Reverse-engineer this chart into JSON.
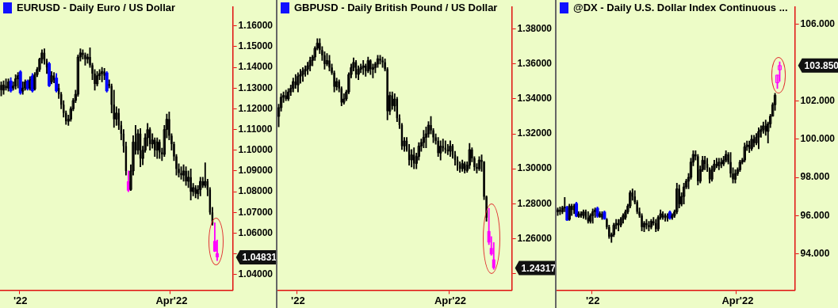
{
  "chart_data": [
    {
      "type": "candlestick",
      "title": "EURUSD - Daily  Euro / US Dollar",
      "categories": [
        null,
        null,
        null,
        null,
        null,
        null,
        null,
        null,
        "'22",
        null,
        null,
        null,
        null,
        null,
        null,
        null,
        null,
        null,
        null,
        null,
        null,
        null,
        null,
        null,
        null,
        null,
        null,
        null,
        null,
        null,
        null,
        null,
        null,
        null,
        null,
        null,
        null,
        null,
        null,
        null,
        null,
        null,
        null,
        null,
        null,
        null,
        null,
        null,
        null,
        null,
        null,
        null,
        null,
        null,
        null,
        null,
        null,
        null,
        null,
        null,
        null,
        null,
        null,
        null,
        null,
        null,
        null,
        null,
        null,
        null,
        null,
        "Apr'22",
        null,
        null,
        null,
        null,
        null,
        null,
        null,
        null,
        null,
        null,
        null,
        null,
        null,
        null,
        null,
        null,
        null,
        null,
        null,
        null,
        null,
        null,
        null,
        null,
        null
      ],
      "ohlc": [
        [
          1.1315,
          1.133,
          1.1262,
          1.129
        ],
        [
          1.129,
          1.1335,
          1.127,
          1.1315
        ],
        [
          1.131,
          1.1345,
          1.129,
          1.13
        ],
        [
          1.13,
          1.1345,
          1.1285,
          1.133
        ],
        [
          1.1336,
          1.135,
          1.128,
          1.1285
        ],
        [
          1.13,
          1.133,
          1.129,
          1.131
        ],
        [
          1.131,
          1.1365,
          1.1295,
          1.1345
        ],
        [
          1.1345,
          1.1375,
          1.13,
          1.136
        ],
        [
          1.138,
          1.1385,
          1.127,
          1.1275
        ],
        [
          1.1285,
          1.133,
          1.127,
          1.13
        ],
        [
          1.13,
          1.134,
          1.129,
          1.133
        ],
        [
          1.1335,
          1.134,
          1.129,
          1.1295
        ],
        [
          1.13,
          1.1355,
          1.129,
          1.134
        ],
        [
          1.136,
          1.137,
          1.128,
          1.1285
        ],
        [
          1.1295,
          1.1375,
          1.129,
          1.1365
        ],
        [
          1.1365,
          1.14,
          1.1355,
          1.139
        ],
        [
          1.139,
          1.1445,
          1.138,
          1.144
        ],
        [
          1.144,
          1.1485,
          1.142,
          1.147
        ],
        [
          1.147,
          1.149,
          1.1415,
          1.143
        ],
        [
          1.143,
          1.144,
          1.137,
          1.14
        ],
        [
          1.142,
          1.1425,
          1.1307,
          1.131
        ],
        [
          1.133,
          1.138,
          1.132,
          1.136
        ],
        [
          1.136,
          1.1375,
          1.1325,
          1.134
        ],
        [
          1.135,
          1.137,
          1.128,
          1.1285
        ],
        [
          1.13,
          1.132,
          1.125,
          1.127
        ],
        [
          1.127,
          1.128,
          1.12,
          1.122
        ],
        [
          1.122,
          1.124,
          1.116,
          1.118
        ],
        [
          1.118,
          1.119,
          1.1125,
          1.114
        ],
        [
          1.114,
          1.117,
          1.112,
          1.115
        ],
        [
          1.115,
          1.121,
          1.114,
          1.12
        ],
        [
          1.12,
          1.125,
          1.119,
          1.124
        ],
        [
          1.124,
          1.129,
          1.123,
          1.127
        ],
        [
          1.127,
          1.146,
          1.126,
          1.145
        ],
        [
          1.145,
          1.149,
          1.143,
          1.147
        ],
        [
          1.147,
          1.1485,
          1.144,
          1.146
        ],
        [
          1.146,
          1.147,
          1.141,
          1.144
        ],
        [
          1.144,
          1.1465,
          1.142,
          1.145
        ],
        [
          1.145,
          1.1495,
          1.14,
          1.141
        ],
        [
          1.141,
          1.142,
          1.134,
          1.137
        ],
        [
          1.137,
          1.139,
          1.129,
          1.132
        ],
        [
          1.132,
          1.138,
          1.131,
          1.136
        ],
        [
          1.136,
          1.139,
          1.134,
          1.137
        ],
        [
          1.137,
          1.14,
          1.133,
          1.138
        ],
        [
          1.138,
          1.1395,
          1.134,
          1.136
        ],
        [
          1.1375,
          1.138,
          1.128,
          1.1285
        ],
        [
          1.132,
          1.134,
          1.13,
          1.131
        ],
        [
          1.131,
          1.132,
          1.118,
          1.122
        ],
        [
          1.122,
          1.129,
          1.111,
          1.115
        ],
        [
          1.115,
          1.121,
          1.112,
          1.118
        ],
        [
          1.118,
          1.12,
          1.11,
          1.112
        ],
        [
          1.112,
          1.114,
          1.105,
          1.108
        ],
        [
          1.108,
          1.11,
          1.099,
          1.102
        ],
        [
          1.102,
          1.104,
          1.088,
          1.09
        ],
        [
          1.085,
          1.09,
          1.08,
          1.0805
        ],
        [
          1.081,
          1.093,
          1.0805,
          1.09
        ],
        [
          1.09,
          1.107,
          1.088,
          1.104
        ],
        [
          1.104,
          1.112,
          1.098,
          1.1
        ],
        [
          1.1,
          1.11,
          1.098,
          1.108
        ],
        [
          1.108,
          1.1105,
          1.092,
          1.096
        ],
        [
          1.096,
          1.102,
          1.093,
          1.1
        ],
        [
          1.1,
          1.108,
          1.099,
          1.106
        ],
        [
          1.106,
          1.113,
          1.102,
          1.11
        ],
        [
          1.11,
          1.111,
          1.1,
          1.103
        ],
        [
          1.103,
          1.108,
          1.101,
          1.105
        ],
        [
          1.105,
          1.106,
          1.097,
          1.1
        ],
        [
          1.1,
          1.106,
          1.096,
          1.104
        ],
        [
          1.104,
          1.105,
          1.096,
          1.099
        ],
        [
          1.099,
          1.101,
          1.095,
          1.098
        ],
        [
          1.098,
          1.112,
          1.097,
          1.11
        ],
        [
          1.11,
          1.1175,
          1.106,
          1.115
        ],
        [
          1.115,
          1.1185,
          1.105,
          1.107
        ],
        [
          1.107,
          1.108,
          1.1,
          1.103
        ],
        [
          1.103,
          1.104,
          1.095,
          1.097
        ],
        [
          1.097,
          1.098,
          1.088,
          1.091
        ],
        [
          1.091,
          1.0935,
          1.087,
          1.089
        ],
        [
          1.089,
          1.092,
          1.086,
          1.088
        ],
        [
          1.088,
          1.093,
          1.085,
          1.09
        ],
        [
          1.09,
          1.092,
          1.083,
          1.085
        ],
        [
          1.085,
          1.09,
          1.082,
          1.087
        ],
        [
          1.087,
          1.091,
          1.076,
          1.08
        ],
        [
          1.08,
          1.084,
          1.078,
          1.082
        ],
        [
          1.082,
          1.083,
          1.077,
          1.079
        ],
        [
          1.079,
          1.083,
          1.0765,
          1.081
        ],
        [
          1.081,
          1.087,
          1.078,
          1.085
        ],
        [
          1.085,
          1.087,
          1.082,
          1.083
        ],
        [
          1.083,
          1.094,
          1.082,
          1.085
        ],
        [
          1.085,
          1.086,
          1.078,
          1.081
        ],
        [
          1.081,
          1.082,
          1.069,
          1.07
        ],
        [
          1.07,
          1.0725,
          1.0638,
          1.0645
        ],
        [
          1.0562,
          1.065,
          1.051,
          1.0511
        ],
        [
          1.0503,
          1.0567,
          1.0467,
          1.04831
        ],
        null,
        null,
        null,
        null,
        null,
        null
      ],
      "colors": [
        "#000000",
        "#000000",
        "#000000",
        "#000000",
        "#0000ff",
        "#000000",
        "#000000",
        "#000000",
        "#0000ff",
        "#000000",
        "#000000",
        "#0000ff",
        "#000000",
        "#0000ff",
        "#000000",
        "#000000",
        "#000000",
        "#000000",
        "#000000",
        "#000000",
        "#0000ff",
        "#000000",
        "#000000",
        "#0000ff",
        "#000000",
        "#000000",
        "#000000",
        "#000000",
        "#000000",
        "#000000",
        "#000000",
        "#000000",
        "#000000",
        "#000000",
        "#000000",
        "#000000",
        "#000000",
        "#000000",
        "#000000",
        "#000000",
        "#000000",
        "#000000",
        "#000000",
        "#000000",
        "#0000ff",
        "#000000",
        "#000000",
        "#000000",
        "#000000",
        "#000000",
        "#000000",
        "#000000",
        "#000000",
        "#ff00ff",
        "#000000",
        "#000000",
        "#000000",
        "#000000",
        "#000000",
        "#000000",
        "#000000",
        "#000000",
        "#000000",
        "#000000",
        "#000000",
        "#000000",
        "#000000",
        "#000000",
        "#000000",
        "#000000",
        "#000000",
        "#000000",
        "#000000",
        "#000000",
        "#000000",
        "#000000",
        "#000000",
        "#000000",
        "#000000",
        "#000000",
        "#000000",
        "#000000",
        "#000000",
        "#000000",
        "#000000",
        "#000000",
        "#000000",
        "#000000",
        "#000000",
        "#ff00ff",
        "#ff00ff",
        "#000000",
        "#000000",
        "#000000",
        "#000000",
        "#000000",
        "#000000"
      ],
      "ylim": [
        1.0325,
        1.169
      ],
      "yticks": [
        {
          "value": 1.04,
          "label": "1.04000"
        },
        {
          "value": 1.05,
          "label": null
        },
        {
          "value": 1.06,
          "label": "1.06000"
        },
        {
          "value": 1.07,
          "label": "1.07000"
        },
        {
          "value": 1.08,
          "label": "1.08000"
        },
        {
          "value": 1.09,
          "label": "1.09000"
        },
        {
          "value": 1.1,
          "label": "1.10000"
        },
        {
          "value": 1.11,
          "label": "1.11000"
        },
        {
          "value": 1.12,
          "label": "1.12000"
        },
        {
          "value": 1.13,
          "label": "1.13000"
        },
        {
          "value": 1.14,
          "label": "1.14000"
        },
        {
          "value": 1.15,
          "label": "1.15000"
        },
        {
          "value": 1.16,
          "label": "1.16000"
        }
      ],
      "annotations": [
        "1.04831"
      ]
    },
    {
      "type": "candlestick",
      "title": "GBPUSD - Daily  British Pound / US Dollar",
      "categories": [
        null,
        null,
        null,
        null,
        null,
        null,
        null,
        null,
        "'22",
        null,
        null,
        null,
        null,
        null,
        null,
        null,
        null,
        null,
        null,
        null,
        null,
        null,
        null,
        null,
        null,
        null,
        null,
        null,
        null,
        null,
        null,
        null,
        null,
        null,
        null,
        null,
        null,
        null,
        null,
        null,
        null,
        null,
        null,
        null,
        null,
        null,
        null,
        null,
        null,
        null,
        null,
        null,
        null,
        null,
        null,
        null,
        null,
        null,
        null,
        null,
        null,
        null,
        null,
        null,
        null,
        null,
        null,
        null,
        null,
        null,
        null,
        "Apr'22",
        null,
        null,
        null,
        null,
        null,
        null,
        null,
        null,
        null,
        null,
        null,
        null,
        null,
        null,
        null,
        null,
        null,
        null,
        null,
        null,
        null,
        null,
        null,
        null,
        null
      ],
      "ohlc": [
        [
          1.33,
          1.337,
          1.324,
          1.335
        ],
        [
          1.335,
          1.343,
          1.333,
          1.341
        ],
        [
          1.341,
          1.344,
          1.338,
          1.342
        ],
        [
          1.342,
          1.345,
          1.339,
          1.34
        ],
        [
          1.34,
          1.346,
          1.339,
          1.344
        ],
        [
          1.344,
          1.348,
          1.342,
          1.346
        ],
        [
          1.346,
          1.352,
          1.344,
          1.35
        ],
        [
          1.35,
          1.354,
          1.346,
          1.348
        ],
        [
          1.348,
          1.355,
          1.344,
          1.353
        ],
        [
          1.353,
          1.357,
          1.349,
          1.354
        ],
        [
          1.354,
          1.358,
          1.35,
          1.356
        ],
        [
          1.356,
          1.359,
          1.353,
          1.357
        ],
        [
          1.357,
          1.361,
          1.354,
          1.359
        ],
        [
          1.359,
          1.364,
          1.356,
          1.362
        ],
        [
          1.362,
          1.365,
          1.359,
          1.364
        ],
        [
          1.364,
          1.37,
          1.362,
          1.369
        ],
        [
          1.369,
          1.3745,
          1.368,
          1.372
        ],
        [
          1.372,
          1.3745,
          1.366,
          1.368
        ],
        [
          1.368,
          1.37,
          1.362,
          1.365
        ],
        [
          1.365,
          1.367,
          1.357,
          1.36
        ],
        [
          1.36,
          1.366,
          1.359,
          1.362
        ],
        [
          1.362,
          1.365,
          1.356,
          1.358
        ],
        [
          1.358,
          1.36,
          1.354,
          1.355
        ],
        [
          1.355,
          1.356,
          1.344,
          1.347
        ],
        [
          1.347,
          1.352,
          1.345,
          1.35
        ],
        [
          1.35,
          1.351,
          1.344,
          1.346
        ],
        [
          1.346,
          1.347,
          1.336,
          1.338
        ],
        [
          1.338,
          1.343,
          1.337,
          1.34
        ],
        [
          1.34,
          1.345,
          1.339,
          1.344
        ],
        [
          1.344,
          1.355,
          1.343,
          1.354
        ],
        [
          1.354,
          1.36,
          1.352,
          1.358
        ],
        [
          1.358,
          1.3635,
          1.356,
          1.361
        ],
        [
          1.361,
          1.362,
          1.352,
          1.354
        ],
        [
          1.354,
          1.359,
          1.351,
          1.357
        ],
        [
          1.357,
          1.36,
          1.355,
          1.358
        ],
        [
          1.358,
          1.362,
          1.354,
          1.359
        ],
        [
          1.359,
          1.36,
          1.353,
          1.356
        ],
        [
          1.356,
          1.364,
          1.355,
          1.362
        ],
        [
          1.362,
          1.3625,
          1.354,
          1.357
        ],
        [
          1.357,
          1.36,
          1.352,
          1.358
        ],
        [
          1.358,
          1.361,
          1.355,
          1.36
        ],
        [
          1.36,
          1.365,
          1.358,
          1.363
        ],
        [
          1.363,
          1.365,
          1.36,
          1.362
        ],
        [
          1.362,
          1.364,
          1.358,
          1.361
        ],
        [
          1.361,
          1.363,
          1.356,
          1.357
        ],
        [
          1.357,
          1.358,
          1.328,
          1.333
        ],
        [
          1.333,
          1.344,
          1.331,
          1.342
        ],
        [
          1.342,
          1.344,
          1.334,
          1.336
        ],
        [
          1.336,
          1.343,
          1.333,
          1.34
        ],
        [
          1.34,
          1.341,
          1.327,
          1.329
        ],
        [
          1.329,
          1.331,
          1.323,
          1.325
        ],
        [
          1.325,
          1.326,
          1.311,
          1.313
        ],
        [
          1.313,
          1.318,
          1.31,
          1.316
        ],
        [
          1.316,
          1.318,
          1.31,
          1.311
        ],
        [
          1.311,
          1.314,
          1.302,
          1.305
        ],
        [
          1.305,
          1.311,
          1.301,
          1.308
        ],
        [
          1.308,
          1.312,
          1.3,
          1.303
        ],
        [
          1.303,
          1.309,
          1.3,
          1.307
        ],
        [
          1.307,
          1.315,
          1.305,
          1.313
        ],
        [
          1.313,
          1.317,
          1.31,
          1.315
        ],
        [
          1.315,
          1.322,
          1.312,
          1.318
        ],
        [
          1.318,
          1.324,
          1.312,
          1.32
        ],
        [
          1.32,
          1.327,
          1.318,
          1.325
        ],
        [
          1.325,
          1.33,
          1.32,
          1.322
        ],
        [
          1.322,
          1.323,
          1.315,
          1.318
        ],
        [
          1.318,
          1.32,
          1.314,
          1.316
        ],
        [
          1.316,
          1.318,
          1.307,
          1.309
        ],
        [
          1.309,
          1.316,
          1.305,
          1.313
        ],
        [
          1.313,
          1.317,
          1.31,
          1.312
        ],
        [
          1.312,
          1.316,
          1.309,
          1.311
        ],
        [
          1.311,
          1.314,
          1.308,
          1.31
        ],
        [
          1.31,
          1.316,
          1.307,
          1.313
        ],
        [
          1.313,
          1.314,
          1.306,
          1.308
        ],
        [
          1.308,
          1.31,
          1.302,
          1.305
        ],
        [
          1.305,
          1.307,
          1.299,
          1.302
        ],
        [
          1.302,
          1.304,
          1.298,
          1.3
        ],
        [
          1.3,
          1.305,
          1.2985,
          1.303
        ],
        [
          1.303,
          1.304,
          1.2975,
          1.299
        ],
        [
          1.299,
          1.304,
          1.298,
          1.302
        ],
        [
          1.302,
          1.3145,
          1.3,
          1.311
        ],
        [
          1.311,
          1.312,
          1.304,
          1.306
        ],
        [
          1.306,
          1.307,
          1.299,
          1.301
        ],
        [
          1.301,
          1.303,
          1.2975,
          1.3
        ],
        [
          1.3,
          1.307,
          1.299,
          1.305
        ],
        [
          1.305,
          1.308,
          1.2985,
          1.304
        ],
        [
          1.304,
          1.3042,
          1.2823,
          1.284
        ],
        [
          1.284,
          1.2845,
          1.27,
          1.272
        ],
        [
          1.2643,
          1.2774,
          1.2566,
          1.2578
        ],
        [
          1.2546,
          1.2612,
          1.2504,
          1.251
        ],
        [
          1.2481,
          1.2578,
          1.2424,
          1.24317
        ],
        null,
        null,
        null,
        null,
        null,
        null,
        null
      ],
      "colors": [
        "#000000",
        "#000000",
        "#000000",
        "#000000",
        "#000000",
        "#000000",
        "#000000",
        "#000000",
        "#000000",
        "#000000",
        "#000000",
        "#000000",
        "#000000",
        "#000000",
        "#000000",
        "#000000",
        "#000000",
        "#000000",
        "#000000",
        "#000000",
        "#000000",
        "#000000",
        "#000000",
        "#000000",
        "#000000",
        "#000000",
        "#000000",
        "#000000",
        "#000000",
        "#000000",
        "#000000",
        "#000000",
        "#000000",
        "#000000",
        "#000000",
        "#000000",
        "#000000",
        "#000000",
        "#000000",
        "#000000",
        "#000000",
        "#000000",
        "#000000",
        "#000000",
        "#000000",
        "#000000",
        "#000000",
        "#000000",
        "#000000",
        "#000000",
        "#000000",
        "#000000",
        "#000000",
        "#000000",
        "#000000",
        "#000000",
        "#000000",
        "#000000",
        "#000000",
        "#000000",
        "#000000",
        "#000000",
        "#000000",
        "#000000",
        "#000000",
        "#000000",
        "#000000",
        "#000000",
        "#000000",
        "#000000",
        "#000000",
        "#000000",
        "#000000",
        "#000000",
        "#000000",
        "#000000",
        "#000000",
        "#000000",
        "#000000",
        "#000000",
        "#000000",
        "#000000",
        "#000000",
        "#000000",
        "#000000",
        "#000000",
        "#000000",
        "#ff00ff",
        "#ff00ff",
        "#ff00ff",
        "#000000",
        "#000000",
        "#000000",
        "#000000",
        "#000000",
        "#000000",
        "#000000"
      ],
      "ylim": [
        1.2305,
        1.3925
      ],
      "yticks": [
        {
          "value": 1.24,
          "label": null
        },
        {
          "value": 1.26,
          "label": "1.26000"
        },
        {
          "value": 1.28,
          "label": "1.28000"
        },
        {
          "value": 1.3,
          "label": "1.30000"
        },
        {
          "value": 1.32,
          "label": "1.32000"
        },
        {
          "value": 1.34,
          "label": "1.34000"
        },
        {
          "value": 1.36,
          "label": "1.36000"
        },
        {
          "value": 1.38,
          "label": "1.38000"
        }
      ],
      "annotations": [
        "1.24317"
      ]
    },
    {
      "type": "candlestick",
      "title": "@DX - Daily  U.S. Dollar Index Continuous ...",
      "categories": [
        null,
        null,
        null,
        null,
        null,
        null,
        null,
        null,
        null,
        null,
        null,
        null,
        null,
        null,
        null,
        "'22",
        null,
        null,
        null,
        null,
        null,
        null,
        null,
        null,
        null,
        null,
        null,
        null,
        null,
        null,
        null,
        null,
        null,
        null,
        null,
        null,
        null,
        null,
        null,
        null,
        null,
        null,
        null,
        null,
        null,
        null,
        null,
        null,
        null,
        null,
        null,
        null,
        null,
        null,
        null,
        null,
        null,
        null,
        null,
        null,
        null,
        null,
        null,
        null,
        null,
        null,
        null,
        null,
        null,
        null,
        null,
        null,
        null,
        null,
        null,
        null,
        null,
        "Apr'22",
        null,
        null,
        null,
        null,
        null,
        null,
        null,
        null,
        null,
        null,
        null,
        null,
        null,
        null,
        null,
        null,
        null,
        null,
        null,
        null,
        null,
        null,
        null,
        null
      ],
      "ohlc": [
        [
          96.2,
          96.4,
          96.0,
          96.3
        ],
        [
          96.3,
          96.45,
          96.05,
          96.2
        ],
        [
          96.2,
          96.5,
          96.1,
          96.4
        ],
        [
          96.4,
          96.95,
          96.2,
          96.45
        ],
        [
          96.45,
          96.5,
          95.73,
          95.75
        ],
        [
          95.8,
          96.6,
          95.75,
          96.5
        ],
        [
          96.5,
          96.6,
          96.0,
          96.3
        ],
        [
          96.3,
          96.6,
          96.1,
          96.5
        ],
        [
          96.65,
          96.7,
          95.93,
          95.95
        ],
        [
          95.95,
          96.2,
          95.9,
          96.1
        ],
        [
          96.1,
          96.2,
          95.9,
          96.0
        ],
        [
          96.0,
          96.3,
          95.85,
          96.2
        ],
        [
          96.2,
          96.3,
          95.8,
          95.9
        ],
        [
          95.9,
          96.2,
          95.6,
          95.7
        ],
        [
          95.7,
          96.1,
          95.6,
          96.0
        ],
        [
          96.0,
          96.35,
          95.6,
          96.2
        ],
        [
          96.2,
          96.4,
          95.9,
          96.3
        ],
        [
          96.4,
          96.45,
          95.9,
          95.95
        ],
        [
          95.95,
          96.2,
          95.9,
          96.1
        ],
        [
          96.1,
          96.2,
          95.8,
          95.9
        ],
        [
          96.2,
          96.25,
          95.8,
          95.82
        ],
        [
          95.8,
          95.85,
          95.3,
          95.4
        ],
        [
          95.4,
          95.5,
          94.8,
          94.9
        ],
        [
          94.9,
          95.1,
          94.6,
          95.0
        ],
        [
          95.0,
          95.6,
          94.9,
          95.5
        ],
        [
          95.5,
          95.8,
          95.3,
          95.6
        ],
        [
          95.6,
          95.8,
          95.2,
          95.5
        ],
        [
          95.5,
          95.9,
          95.4,
          95.8
        ],
        [
          95.8,
          96.1,
          95.6,
          96.0
        ],
        [
          95.9,
          96.3,
          95.8,
          96.2
        ],
        [
          96.2,
          96.6,
          96.1,
          96.5
        ],
        [
          96.5,
          97.3,
          96.4,
          97.2
        ],
        [
          97.2,
          97.4,
          96.8,
          97.0
        ],
        [
          97.0,
          97.3,
          96.6,
          96.7
        ],
        [
          96.7,
          96.8,
          96.1,
          96.2
        ],
        [
          96.2,
          96.4,
          95.9,
          96.0
        ],
        [
          96.0,
          96.1,
          95.2,
          95.4
        ],
        [
          95.4,
          95.7,
          95.15,
          95.6
        ],
        [
          95.6,
          95.8,
          95.3,
          95.5
        ],
        [
          95.5,
          95.7,
          95.2,
          95.4
        ],
        [
          95.4,
          95.8,
          95.3,
          95.7
        ],
        [
          95.7,
          95.9,
          95.5,
          95.6
        ],
        [
          95.6,
          95.8,
          95.15,
          95.3
        ],
        [
          95.3,
          96.0,
          95.2,
          95.9
        ],
        [
          95.9,
          96.3,
          95.8,
          96.1
        ],
        [
          96.1,
          96.2,
          95.8,
          95.9
        ],
        [
          95.9,
          96.1,
          95.7,
          96.0
        ],
        [
          95.9,
          96.1,
          95.7,
          95.8
        ],
        [
          96.2,
          96.25,
          95.8,
          95.85
        ],
        [
          95.9,
          96.1,
          95.8,
          96.0
        ],
        [
          96.0,
          96.3,
          95.9,
          96.2
        ],
        [
          96.2,
          97.7,
          96.1,
          97.4
        ],
        [
          97.4,
          97.6,
          96.4,
          96.6
        ],
        [
          96.6,
          97.2,
          96.5,
          97.0
        ],
        [
          97.0,
          97.7,
          96.6,
          97.5
        ],
        [
          97.5,
          97.9,
          97.4,
          97.8
        ],
        [
          97.8,
          98.2,
          97.4,
          98.0
        ],
        [
          98.0,
          99.0,
          97.9,
          98.8
        ],
        [
          98.8,
          99.4,
          98.6,
          99.2
        ],
        [
          99.2,
          99.4,
          98.9,
          99.1
        ],
        [
          99.1,
          99.2,
          97.6,
          97.8
        ],
        [
          97.8,
          98.6,
          97.7,
          98.4
        ],
        [
          98.4,
          99.1,
          98.3,
          98.9
        ],
        [
          98.9,
          99.1,
          98.4,
          98.7
        ],
        [
          98.7,
          99.0,
          98.3,
          98.5
        ],
        [
          98.5,
          98.5,
          97.7,
          97.9
        ],
        [
          97.9,
          98.6,
          97.8,
          98.4
        ],
        [
          98.4,
          98.9,
          98.3,
          98.7
        ],
        [
          98.7,
          99.0,
          98.5,
          98.6
        ],
        [
          98.6,
          99.0,
          98.4,
          98.8
        ],
        [
          98.8,
          99.0,
          98.5,
          98.7
        ],
        [
          98.7,
          99.1,
          98.6,
          98.9
        ],
        [
          98.9,
          99.4,
          98.8,
          99.2
        ],
        [
          99.2,
          99.3,
          98.7,
          98.8
        ],
        [
          98.8,
          99.3,
          98.0,
          98.2
        ],
        [
          98.2,
          98.5,
          97.7,
          97.9
        ],
        [
          97.9,
          98.4,
          97.7,
          98.2
        ],
        [
          98.2,
          98.5,
          98.1,
          98.4
        ],
        [
          98.4,
          98.9,
          98.3,
          98.8
        ],
        [
          98.8,
          99.0,
          98.7,
          98.9
        ],
        [
          98.9,
          99.8,
          98.8,
          99.6
        ],
        [
          99.6,
          99.9,
          99.4,
          99.7
        ],
        [
          99.7,
          99.9,
          99.3,
          99.5
        ],
        [
          99.5,
          100.2,
          99.4,
          100.0
        ],
        [
          100.0,
          100.2,
          99.6,
          99.8
        ],
        [
          99.8,
          100.3,
          99.7,
          100.1
        ],
        [
          100.1,
          100.6,
          99.5,
          100.4
        ],
        [
          100.4,
          100.7,
          100.1,
          100.5
        ],
        [
          100.5,
          100.9,
          100.3,
          100.7
        ],
        [
          100.7,
          101.0,
          100.2,
          100.4
        ],
        [
          100.4,
          100.9,
          99.8,
          100.8
        ],
        [
          100.8,
          101.3,
          100.6,
          101.2
        ],
        [
          101.2,
          101.9,
          101.2,
          101.8
        ],
        [
          101.8,
          102.4,
          101.5,
          102.3
        ],
        [
          102.95,
          103.35,
          102.65,
          103.35
        ],
        [
          103.63,
          104.05,
          103.03,
          103.85
        ],
        null,
        null,
        null,
        null,
        null,
        null
      ],
      "colors": [
        "#000000",
        "#000000",
        "#000000",
        "#000000",
        "#0000ff",
        "#000000",
        "#000000",
        "#000000",
        "#0000ff",
        "#000000",
        "#000000",
        "#000000",
        "#000000",
        "#000000",
        "#000000",
        "#000000",
        "#000000",
        "#0000ff",
        "#000000",
        "#000000",
        "#0000ff",
        "#000000",
        "#000000",
        "#000000",
        "#000000",
        "#000000",
        "#000000",
        "#000000",
        "#000000",
        "#000000",
        "#000000",
        "#000000",
        "#000000",
        "#000000",
        "#000000",
        "#000000",
        "#000000",
        "#000000",
        "#000000",
        "#000000",
        "#000000",
        "#000000",
        "#000000",
        "#000000",
        "#000000",
        "#000000",
        "#000000",
        "#000000",
        "#0000ff",
        "#000000",
        "#000000",
        "#000000",
        "#000000",
        "#000000",
        "#000000",
        "#000000",
        "#000000",
        "#000000",
        "#000000",
        "#000000",
        "#000000",
        "#000000",
        "#000000",
        "#000000",
        "#000000",
        "#000000",
        "#000000",
        "#000000",
        "#000000",
        "#000000",
        "#000000",
        "#000000",
        "#000000",
        "#000000",
        "#000000",
        "#000000",
        "#000000",
        "#000000",
        "#000000",
        "#000000",
        "#000000",
        "#000000",
        "#000000",
        "#000000",
        "#000000",
        "#000000",
        "#000000",
        "#000000",
        "#000000",
        "#000000",
        "#000000",
        "#000000",
        "#000000",
        "#000000",
        "#ff00ff",
        "#ff00ff",
        "#000000",
        "#000000",
        "#000000",
        "#000000",
        "#000000",
        "#000000"
      ],
      "ylim": [
        92.1,
        106.9
      ],
      "yticks": [
        {
          "value": 94,
          "label": "94.000"
        },
        {
          "value": 96,
          "label": "96.000"
        },
        {
          "value": 98,
          "label": "98.000"
        },
        {
          "value": 100,
          "label": "100.000"
        },
        {
          "value": 102,
          "label": "102.000"
        },
        {
          "value": 106,
          "label": "106.000"
        }
      ],
      "annotations": [
        "103.850"
      ]
    }
  ]
}
